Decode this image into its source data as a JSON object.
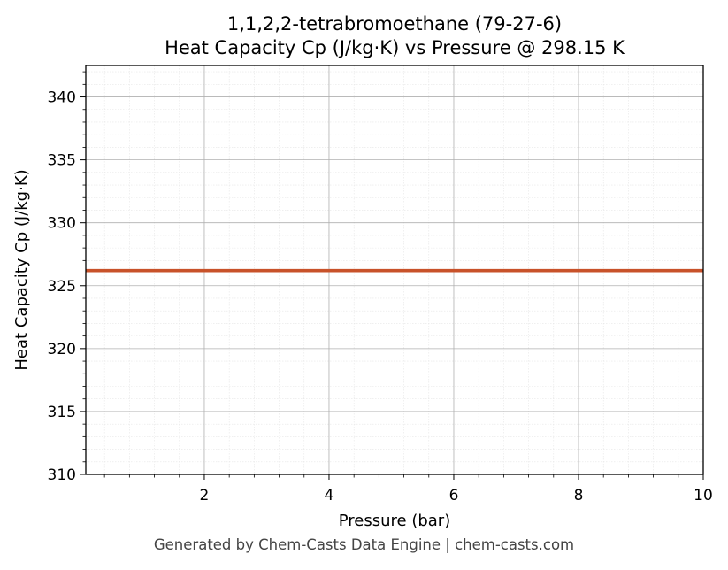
{
  "chart_data": {
    "type": "line",
    "title": "1,1,2,2-tetrabromoethane (79-27-6)",
    "subtitle": "Heat Capacity Cp (J/kg·K) vs Pressure @ 298.15 K",
    "xlabel": "Pressure (bar)",
    "ylabel": "Heat Capacity Cp (J/kg·K)",
    "xlim": [
      0.1,
      10
    ],
    "ylim": [
      310,
      342.5
    ],
    "xticks": [
      2,
      4,
      6,
      8,
      10
    ],
    "yticks": [
      310,
      315,
      320,
      325,
      330,
      335,
      340
    ],
    "grid": true,
    "series": [
      {
        "color": "#c8522a",
        "x": [
          0.1,
          10
        ],
        "y": [
          326.2,
          326.2
        ]
      }
    ]
  },
  "footer": "Generated by Chem-Casts Data Engine | chem-casts.com"
}
